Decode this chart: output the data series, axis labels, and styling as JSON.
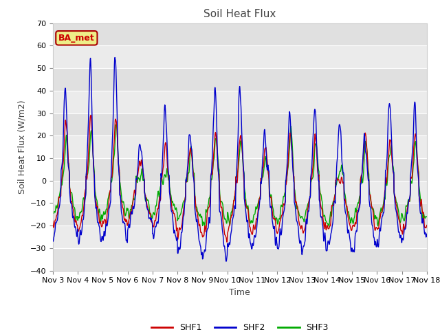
{
  "title": "Soil Heat Flux",
  "xlabel": "Time",
  "ylabel": "Soil Heat Flux (W/m2)",
  "ylim": [
    -40,
    70
  ],
  "xlim": [
    0,
    360
  ],
  "x_tick_labels": [
    "Nov 3",
    "Nov 4",
    "Nov 5",
    "Nov 6",
    "Nov 7",
    "Nov 8",
    "Nov 9",
    "Nov 10",
    "Nov 11",
    "Nov 12",
    "Nov 13",
    "Nov 14",
    "Nov 15",
    "Nov 16",
    "Nov 17",
    "Nov 18"
  ],
  "colors": {
    "SHF1": "#cc0000",
    "SHF2": "#0000cc",
    "SHF3": "#00aa00"
  },
  "linewidth": 1.0,
  "fig_bg": "#ffffff",
  "plot_bg": "#ebebeb",
  "grid_color": "#ffffff",
  "annotation_text": "BA_met",
  "annotation_bg": "#eeee88",
  "annotation_border": "#aa0000",
  "annotation_text_color": "#cc0000",
  "band_color_light": "#e8e8e8",
  "band_color_dark": "#d8d8d8"
}
